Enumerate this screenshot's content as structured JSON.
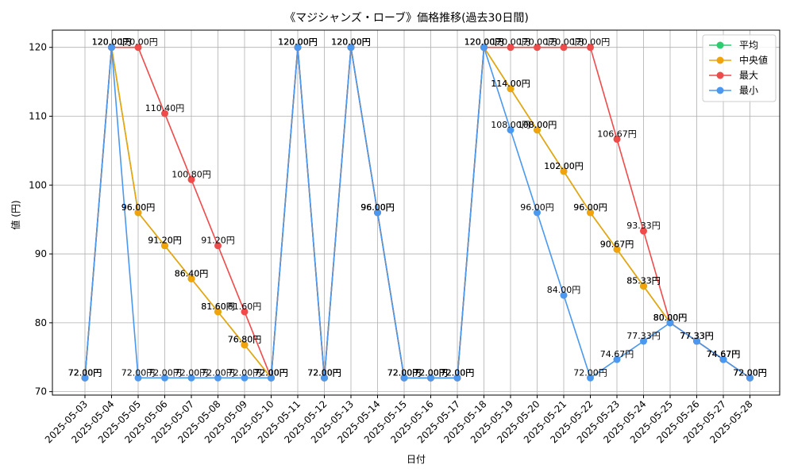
{
  "chart_data": {
    "type": "line",
    "title": "《マジシャンズ・ローブ》価格推移(過去30日間)",
    "xlabel": "日付",
    "ylabel": "値 (円)",
    "ylim": [
      69.5,
      122.5
    ],
    "yticks": [
      70,
      80,
      90,
      100,
      110,
      120
    ],
    "grid": true,
    "legend_position": "top-right",
    "label_suffix": "円",
    "categories": [
      "2025-05-03",
      "2025-05-04",
      "2025-05-05",
      "2025-05-06",
      "2025-05-07",
      "2025-05-08",
      "2025-05-09",
      "2025-05-10",
      "2025-05-11",
      "2025-05-12",
      "2025-05-13",
      "2025-05-14",
      "2025-05-15",
      "2025-05-16",
      "2025-05-17",
      "2025-05-18",
      "2025-05-19",
      "2025-05-20",
      "2025-05-21",
      "2025-05-22",
      "2025-05-23",
      "2025-05-24",
      "2025-05-25",
      "2025-05-26",
      "2025-05-27",
      "2025-05-28"
    ],
    "series": [
      {
        "name": "平均",
        "color": "#2ecc71",
        "values": [
          72,
          120,
          96,
          91.2,
          86.4,
          81.6,
          76.8,
          72,
          120,
          72,
          120,
          96,
          72,
          72,
          72,
          120,
          114,
          108,
          102,
          96,
          90.67,
          85.33,
          80,
          77.33,
          74.67,
          72
        ]
      },
      {
        "name": "中央値",
        "color": "#f0a30a",
        "values": [
          72,
          120,
          96,
          91.2,
          86.4,
          81.6,
          76.8,
          72,
          120,
          72,
          120,
          96,
          72,
          72,
          72,
          120,
          114,
          108,
          102,
          96,
          90.67,
          85.33,
          80,
          77.33,
          74.67,
          72
        ]
      },
      {
        "name": "最大",
        "color": "#f04b4b",
        "values": [
          72,
          120,
          120,
          110.4,
          100.8,
          91.2,
          81.6,
          72,
          120,
          72,
          120,
          96,
          72,
          72,
          72,
          120,
          120,
          120,
          120,
          120,
          106.67,
          93.33,
          80,
          77.33,
          74.67,
          72
        ]
      },
      {
        "name": "最小",
        "color": "#4a98f0",
        "values": [
          72,
          120,
          72,
          72,
          72,
          72,
          72,
          72,
          120,
          72,
          120,
          96,
          72,
          72,
          72,
          120,
          108,
          96,
          84,
          72,
          74.67,
          77.33,
          80,
          77.33,
          74.67,
          72
        ]
      }
    ]
  }
}
